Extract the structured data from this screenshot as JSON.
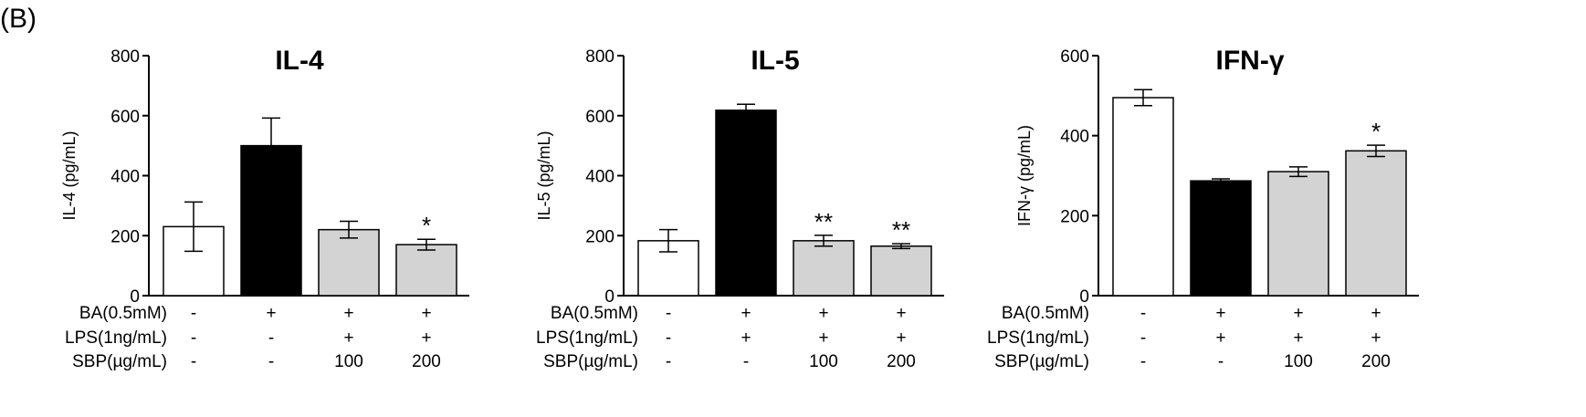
{
  "figure": {
    "panel_label": "(B)"
  },
  "colors": {
    "white_bar": "#ffffff",
    "black_bar": "#000000",
    "gray_bar": "#d3d3d3",
    "stroke": "#000000"
  },
  "condition_row_labels": [
    "BA(0.5mM)",
    "LPS(1ng/mL)",
    "SBP(µg/mL)"
  ],
  "chart_data": [
    {
      "type": "bar",
      "title": "IL-4",
      "ylabel": "IL-4 (pg/mL)",
      "ylim": [
        0,
        800
      ],
      "yticks": [
        "0",
        "200",
        "400",
        "600",
        "800"
      ],
      "values": [
        230,
        500,
        220,
        170
      ],
      "errors": [
        82,
        92,
        28,
        18
      ],
      "bar_fills": [
        "white",
        "black",
        "gray",
        "gray"
      ],
      "significance": [
        "",
        "",
        "",
        "*"
      ],
      "conditions": [
        [
          "-",
          "+",
          "+",
          "+"
        ],
        [
          "-",
          "-",
          "+",
          "+"
        ],
        [
          "-",
          "-",
          "100",
          "200"
        ]
      ]
    },
    {
      "type": "bar",
      "title": "IL-5",
      "ylabel": "IL-5 (pg/mL)",
      "ylim": [
        0,
        800
      ],
      "yticks": [
        "0",
        "200",
        "400",
        "600",
        "800"
      ],
      "values": [
        183,
        618,
        183,
        165
      ],
      "errors": [
        37,
        20,
        18,
        8
      ],
      "bar_fills": [
        "white",
        "black",
        "gray",
        "gray"
      ],
      "significance": [
        "",
        "",
        "**",
        "**"
      ],
      "conditions": [
        [
          "-",
          "+",
          "+",
          "+"
        ],
        [
          "-",
          "+",
          "+",
          "+"
        ],
        [
          "-",
          "-",
          "100",
          "200"
        ]
      ]
    },
    {
      "type": "bar",
      "title": "IFN-γ",
      "ylabel": "IFN-γ (pg/mL)",
      "ylim": [
        0,
        600
      ],
      "yticks": [
        "0",
        "200",
        "400",
        "600"
      ],
      "values": [
        495,
        287,
        310,
        362
      ],
      "errors": [
        20,
        5,
        12,
        14
      ],
      "bar_fills": [
        "white",
        "black",
        "gray",
        "gray"
      ],
      "significance": [
        "",
        "",
        "",
        "*"
      ],
      "conditions": [
        [
          "-",
          "+",
          "+",
          "+"
        ],
        [
          "-",
          "+",
          "+",
          "+"
        ],
        [
          "-",
          "-",
          "100",
          "200"
        ]
      ]
    }
  ]
}
